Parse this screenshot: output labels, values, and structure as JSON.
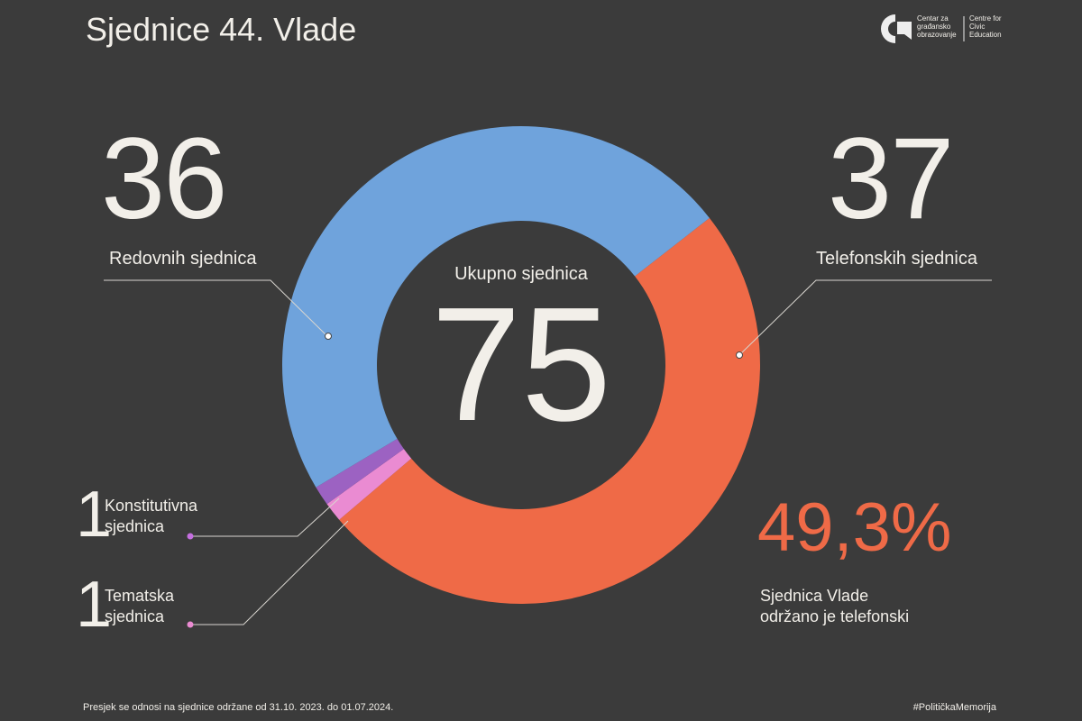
{
  "title": "Sjednice 44. Vlade",
  "logo": {
    "org_local": "Centar za građansko obrazovanje",
    "org_en": "Centre for Civic Education"
  },
  "chart_data": {
    "type": "donut",
    "categories": [
      "Redovnih sjednica",
      "Telefonskih sjednica",
      "Konstitutivna sjednica",
      "Tematska sjednica"
    ],
    "values": [
      36,
      37,
      1,
      1
    ],
    "colors": [
      "#6fa3dc",
      "#ef6a47",
      "#9c62c2",
      "#ea8bd2"
    ],
    "total_label": "Ukupno sjednica",
    "total": 75,
    "share": {
      "value": 49.3,
      "label": "49,3%"
    },
    "share_text": "Sjednica Vlade održano je telefonski"
  },
  "footer": {
    "note": "Presjek se odnosi na sjednice održane od 31.10. 2023. do 01.07.2024.",
    "hashtag": "#PolitičkaMemorija"
  }
}
